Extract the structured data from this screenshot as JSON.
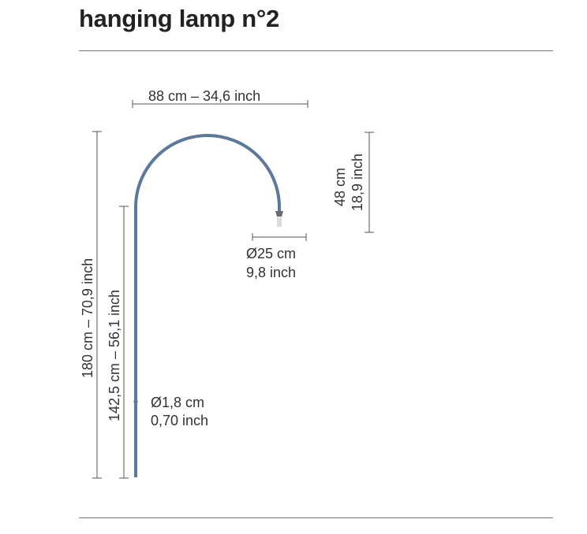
{
  "title": "hanging lamp n°2",
  "dimensions": {
    "width": "88 cm – 34,6 inch",
    "total_height": "180 cm – 70,9 inch",
    "stem_height": "142,5 cm – 56,1 inch",
    "drop_cm": "48 cm",
    "drop_inch": "18,9 inch",
    "shade_cm": "Ø25 cm",
    "shade_inch": "9,8 inch",
    "tube_cm": "Ø1,8 cm",
    "tube_inch": "0,70 inch"
  },
  "colors": {
    "lamp": "#5b7a99",
    "lines": "#555555"
  }
}
